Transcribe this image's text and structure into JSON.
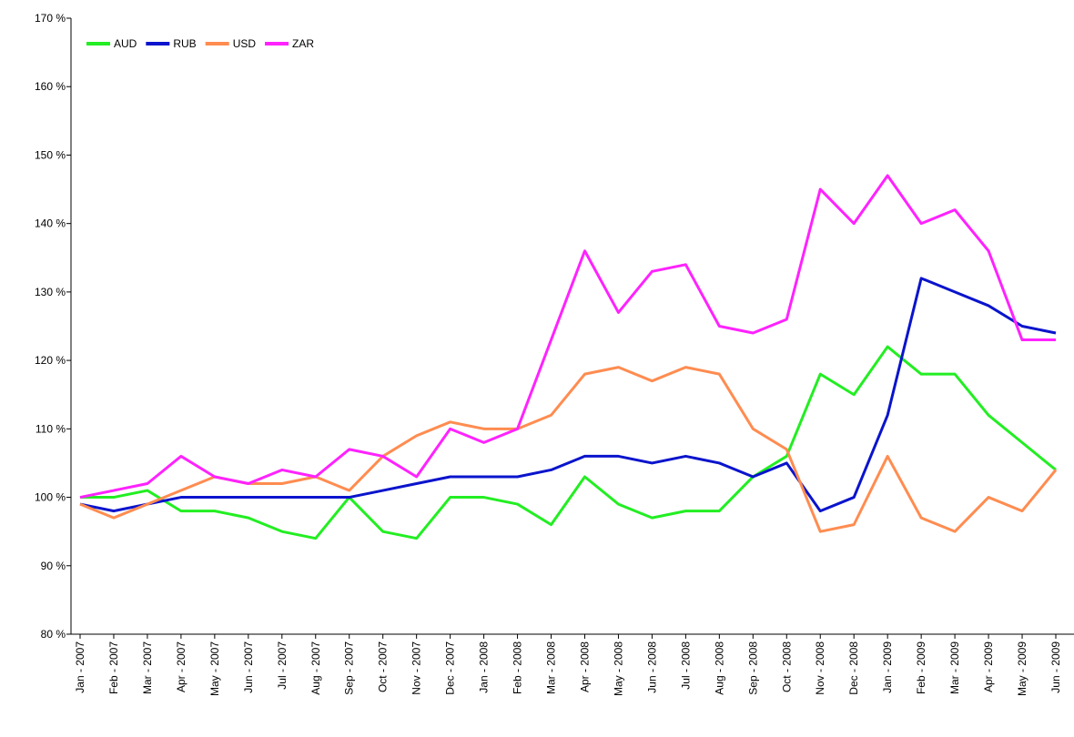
{
  "chart_data": {
    "type": "line",
    "categories": [
      "Jan - 2007",
      "Feb - 2007",
      "Mar - 2007",
      "Apr - 2007",
      "May - 2007",
      "Jun - 2007",
      "Jul - 2007",
      "Aug - 2007",
      "Sep - 2007",
      "Oct - 2007",
      "Nov - 2007",
      "Dec - 2007",
      "Jan - 2008",
      "Feb - 2008",
      "Mar - 2008",
      "Apr - 2008",
      "May - 2008",
      "Jun - 2008",
      "Jul - 2008",
      "Aug - 2008",
      "Sep - 2008",
      "Oct - 2008",
      "Nov - 2008",
      "Dec - 2008",
      "Jan - 2009",
      "Feb - 2009",
      "Mar - 2009",
      "Apr - 2009",
      "May - 2009",
      "Jun - 2009"
    ],
    "series": [
      {
        "name": "AUD",
        "color": "#22ee22",
        "values": [
          100,
          100,
          101,
          98,
          98,
          97,
          95,
          94,
          100,
          95,
          94,
          100,
          100,
          99,
          96,
          103,
          99,
          97,
          98,
          98,
          103,
          106,
          118,
          115,
          122,
          118,
          118,
          112,
          108,
          104
        ]
      },
      {
        "name": "RUB",
        "color": "#0a14cc",
        "values": [
          99,
          98,
          99,
          100,
          100,
          100,
          100,
          100,
          100,
          101,
          102,
          103,
          103,
          103,
          104,
          106,
          106,
          105,
          106,
          105,
          103,
          105,
          98,
          100,
          112,
          132,
          130,
          128,
          125,
          124
        ]
      },
      {
        "name": "USD",
        "color": "#ff8c50",
        "values": [
          99,
          97,
          99,
          101,
          103,
          102,
          102,
          103,
          101,
          106,
          109,
          111,
          110,
          110,
          112,
          118,
          119,
          117,
          119,
          118,
          110,
          107,
          95,
          96,
          106,
          97,
          95,
          100,
          98,
          104
        ]
      },
      {
        "name": "ZAR",
        "color": "#ff22ff",
        "values": [
          100,
          101,
          102,
          106,
          103,
          102,
          104,
          103,
          107,
          106,
          103,
          110,
          108,
          110,
          123,
          136,
          127,
          133,
          134,
          125,
          124,
          126,
          145,
          140,
          147,
          140,
          142,
          136,
          123,
          123
        ]
      }
    ],
    "ylim": [
      80,
      170
    ],
    "yticks": [
      {
        "value": 80,
        "label": "80 %"
      },
      {
        "value": 90,
        "label": "90 %"
      },
      {
        "value": 100,
        "label": "100 %"
      },
      {
        "value": 110,
        "label": "110 %"
      },
      {
        "value": 120,
        "label": "120 %"
      },
      {
        "value": 130,
        "label": "130 %"
      },
      {
        "value": 140,
        "label": "140 %"
      },
      {
        "value": 150,
        "label": "150 %"
      },
      {
        "value": 160,
        "label": "160 %"
      },
      {
        "value": 170,
        "label": "170 %"
      }
    ],
    "legend": "top-left",
    "grid": false
  }
}
